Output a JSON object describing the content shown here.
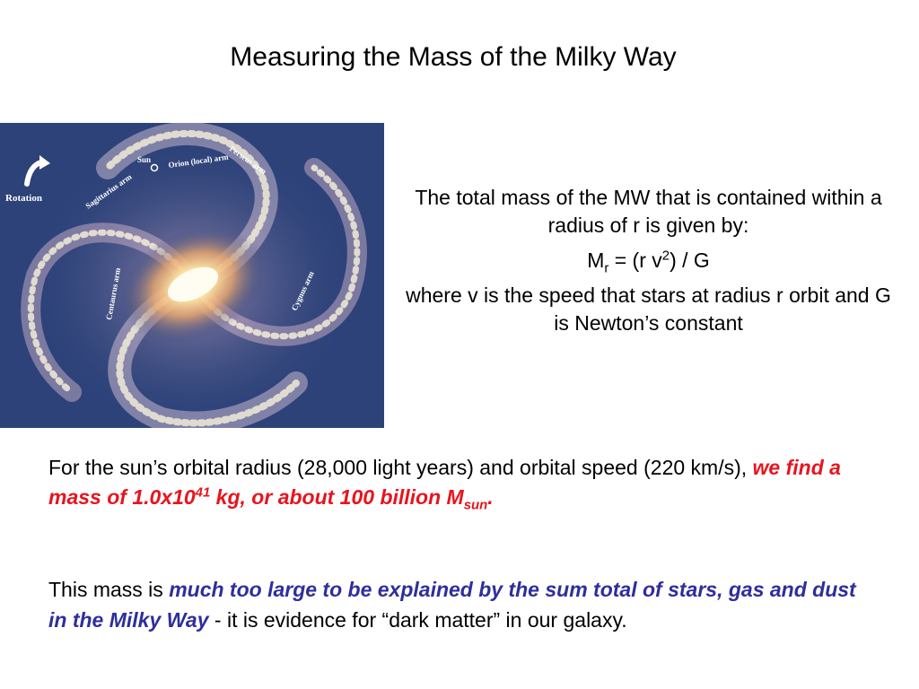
{
  "title": "Measuring the Mass of the Milky Way",
  "image": {
    "labels": {
      "rotation": "Rotation",
      "sun": "Sun",
      "orion": "Orion (local) arm",
      "perseus": "Perseus arm",
      "sagittarius": "Sagittarius arm",
      "centaurus": "Centaurus arm",
      "cygnus": "Cygnus arm"
    }
  },
  "right": {
    "line1": "The total mass of the MW that is contained within a radius of r is given by:",
    "formula": {
      "m": "M",
      "sub": "r",
      "mid": " = (r v",
      "sup": "2",
      "end": ") / G"
    },
    "line2": "where v is the speed that stars at radius r orbit and G is Newton’s constant"
  },
  "para1": {
    "plain": "For the sun’s orbital radius (28,000 light years) and orbital speed (220 km/s), ",
    "red1": "we find a mass of 1.0x10",
    "red_sup": "41",
    "red2": " kg, or about 100 billion M",
    "red_sub": "sun",
    "red3": "."
  },
  "para2": {
    "plain1": "This mass is ",
    "blue": "much too large to be explained by the sum total of stars, gas and dust in the Milky Way",
    "plain2": " - it is evidence for “dark matter” in our galaxy."
  }
}
